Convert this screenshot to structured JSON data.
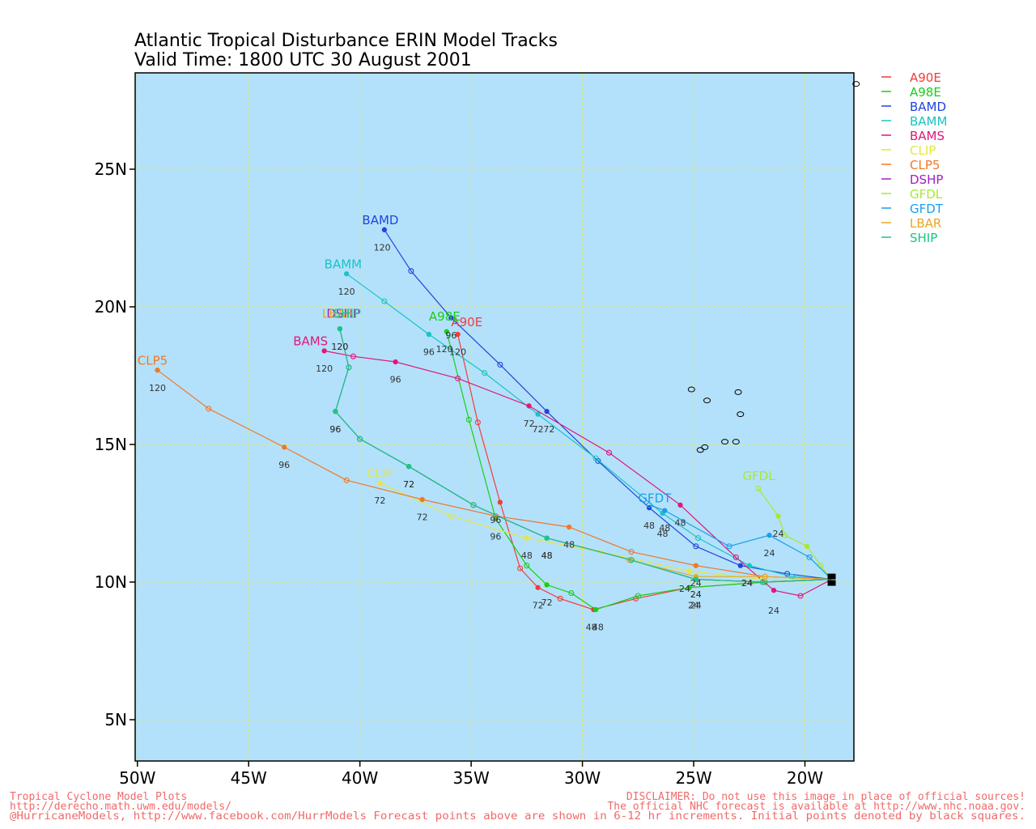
{
  "title": {
    "line1": "Atlantic Tropical Disturbance ERIN Model Tracks",
    "line2": "Valid Time: 1800 UTC 30 August 2001"
  },
  "colors": {
    "ocean": "#b3e1fb",
    "grid": "#e8e85a",
    "land": "#000000"
  },
  "axes": {
    "lon_ticks": [
      {
        "lon": -50,
        "label": "50W"
      },
      {
        "lon": -45,
        "label": "45W"
      },
      {
        "lon": -40,
        "label": "40W"
      },
      {
        "lon": -35,
        "label": "35W"
      },
      {
        "lon": -30,
        "label": "30W"
      },
      {
        "lon": -25,
        "label": "25W"
      },
      {
        "lon": -20,
        "label": "20W"
      }
    ],
    "lat_ticks": [
      {
        "lat": 5,
        "label": "5N"
      },
      {
        "lat": 10,
        "label": "10N"
      },
      {
        "lat": 15,
        "label": "15N"
      },
      {
        "lat": 20,
        "label": "20N"
      },
      {
        "lat": 25,
        "label": "25N"
      }
    ]
  },
  "origin": {
    "lon": -18.8,
    "lat": 10.1
  },
  "models": [
    {
      "name": "A90E",
      "color": "#f03c3c",
      "label_at": {
        "lon": -35.9,
        "lat": 19.3
      },
      "points": [
        [
          -18.8,
          10.1
        ],
        [
          -21.8,
          10.0
        ],
        [
          -25.2,
          9.8
        ],
        [
          -27.6,
          9.4
        ],
        [
          -29.5,
          9.0
        ],
        [
          -31.0,
          9.4
        ],
        [
          -32.0,
          9.8
        ],
        [
          -32.8,
          10.5
        ],
        [
          -33.7,
          12.9
        ],
        [
          -34.7,
          15.8
        ],
        [
          -35.6,
          19.0
        ]
      ],
      "hours": [
        {
          "lon": -25.0,
          "lat": 9.4,
          "t": "24"
        },
        {
          "lon": -29.6,
          "lat": 8.6,
          "t": "48"
        },
        {
          "lon": -32.0,
          "lat": 9.4,
          "t": "72"
        },
        {
          "lon": -33.9,
          "lat": 12.5,
          "t": "96"
        },
        {
          "lon": -35.6,
          "lat": 18.6,
          "t": "120"
        }
      ]
    },
    {
      "name": "A98E",
      "color": "#16d016",
      "label_at": {
        "lon": -36.9,
        "lat": 19.5
      },
      "points": [
        [
          -18.8,
          10.1
        ],
        [
          -21.8,
          10.0
        ],
        [
          -25.2,
          9.8
        ],
        [
          -27.5,
          9.5
        ],
        [
          -29.4,
          9.0
        ],
        [
          -30.5,
          9.6
        ],
        [
          -31.6,
          9.9
        ],
        [
          -32.5,
          10.6
        ],
        [
          -33.9,
          12.3
        ],
        [
          -35.1,
          15.9
        ],
        [
          -36.1,
          19.1
        ]
      ],
      "hours": [
        {
          "lon": -24.9,
          "lat": 9.4,
          "t": "24"
        },
        {
          "lon": -29.3,
          "lat": 8.6,
          "t": "48"
        },
        {
          "lon": -31.6,
          "lat": 9.5,
          "t": "72"
        },
        {
          "lon": -33.9,
          "lat": 11.9,
          "t": "96"
        },
        {
          "lon": -36.2,
          "lat": 18.7,
          "t": "120"
        }
      ]
    },
    {
      "name": "BAMD",
      "color": "#2244e0",
      "label_at": {
        "lon": -39.9,
        "lat": 23.0
      },
      "points": [
        [
          -18.8,
          10.1
        ],
        [
          -20.8,
          10.3
        ],
        [
          -22.9,
          10.6
        ],
        [
          -24.9,
          11.3
        ],
        [
          -27.0,
          12.7
        ],
        [
          -29.3,
          14.4
        ],
        [
          -31.6,
          16.2
        ],
        [
          -33.7,
          17.9
        ],
        [
          -35.9,
          19.6
        ],
        [
          -37.7,
          21.3
        ],
        [
          -38.9,
          22.8
        ]
      ],
      "hours": [
        {
          "lon": -22.6,
          "lat": 10.2,
          "t": "24"
        },
        {
          "lon": -27.0,
          "lat": 12.3,
          "t": "48"
        },
        {
          "lon": -31.5,
          "lat": 15.8,
          "t": "72"
        },
        {
          "lon": -35.9,
          "lat": 19.2,
          "t": "96"
        },
        {
          "lon": -39.0,
          "lat": 22.4,
          "t": "120"
        }
      ]
    },
    {
      "name": "BAMM",
      "color": "#18c4c4",
      "label_at": {
        "lon": -41.6,
        "lat": 21.4
      },
      "points": [
        [
          -18.8,
          10.1
        ],
        [
          -20.6,
          10.2
        ],
        [
          -22.5,
          10.6
        ],
        [
          -24.8,
          11.6
        ],
        [
          -26.4,
          12.5
        ],
        [
          -29.4,
          14.5
        ],
        [
          -32.0,
          16.1
        ],
        [
          -34.4,
          17.6
        ],
        [
          -36.9,
          19.0
        ],
        [
          -38.9,
          20.2
        ],
        [
          -40.6,
          21.2
        ]
      ],
      "hours": [
        {
          "lon": -22.6,
          "lat": 10.2,
          "t": "24"
        },
        {
          "lon": -26.4,
          "lat": 12.0,
          "t": "48"
        },
        {
          "lon": -32.0,
          "lat": 15.8,
          "t": "72"
        },
        {
          "lon": -36.9,
          "lat": 18.6,
          "t": "96"
        },
        {
          "lon": -40.6,
          "lat": 20.8,
          "t": "120"
        }
      ]
    },
    {
      "name": "BAMS",
      "color": "#e0187a",
      "label_at": {
        "lon": -43.0,
        "lat": 18.6
      },
      "points": [
        [
          -18.8,
          10.1
        ],
        [
          -20.2,
          9.5
        ],
        [
          -21.4,
          9.7
        ],
        [
          -23.1,
          10.9
        ],
        [
          -25.6,
          12.8
        ],
        [
          -28.8,
          14.7
        ],
        [
          -32.4,
          16.4
        ],
        [
          -35.6,
          17.4
        ],
        [
          -38.4,
          18.0
        ],
        [
          -40.3,
          18.2
        ],
        [
          -41.6,
          18.4
        ]
      ],
      "hours": [
        {
          "lon": -21.4,
          "lat": 9.2,
          "t": "24"
        },
        {
          "lon": -25.6,
          "lat": 12.4,
          "t": "48"
        },
        {
          "lon": -32.4,
          "lat": 16.0,
          "t": "72"
        },
        {
          "lon": -38.4,
          "lat": 17.6,
          "t": "96"
        },
        {
          "lon": -41.6,
          "lat": 18.0,
          "t": "120"
        }
      ]
    },
    {
      "name": "CLIP",
      "color": "#e6e640",
      "label_at": {
        "lon": -39.7,
        "lat": 13.8
      },
      "points": [
        [
          -18.8,
          10.1
        ],
        [
          -21.9,
          10.1
        ],
        [
          -25.2,
          10.4
        ],
        [
          -29.2,
          11.1
        ],
        [
          -32.5,
          11.6
        ],
        [
          -35.9,
          12.4
        ],
        [
          -39.1,
          13.6
        ]
      ],
      "hours": [
        {
          "lon": -25.4,
          "lat": 10.0,
          "t": "24"
        },
        {
          "lon": -32.5,
          "lat": 11.2,
          "t": "48"
        },
        {
          "lon": -39.1,
          "lat": 13.2,
          "t": "72"
        }
      ]
    },
    {
      "name": "CLP5",
      "color": "#f07828",
      "label_at": {
        "lon": -50.0,
        "lat": 17.9
      },
      "points": [
        [
          -18.8,
          10.1
        ],
        [
          -21.8,
          10.2
        ],
        [
          -24.9,
          10.6
        ],
        [
          -27.8,
          11.1
        ],
        [
          -30.6,
          12.0
        ],
        [
          -33.9,
          12.4
        ],
        [
          -37.2,
          13.0
        ],
        [
          -40.6,
          13.7
        ],
        [
          -43.4,
          14.9
        ],
        [
          -46.8,
          16.3
        ],
        [
          -49.1,
          17.7
        ]
      ],
      "hours": [
        {
          "lon": -24.9,
          "lat": 10.2,
          "t": "24"
        },
        {
          "lon": -30.6,
          "lat": 11.6,
          "t": "48"
        },
        {
          "lon": -37.2,
          "lat": 12.6,
          "t": "72"
        },
        {
          "lon": -43.4,
          "lat": 14.5,
          "t": "96"
        },
        {
          "lon": -49.1,
          "lat": 17.3,
          "t": "120"
        }
      ]
    },
    {
      "name": "DSHP",
      "color": "#a020c0",
      "label_at": {
        "lon": -41.5,
        "lat": 19.6
      },
      "points": [
        [
          -18.8,
          10.1
        ],
        [
          -21.9,
          10.0
        ],
        [
          -24.9,
          10.1
        ],
        [
          -27.8,
          10.8
        ],
        [
          -31.6,
          11.6
        ],
        [
          -34.9,
          12.8
        ],
        [
          -37.8,
          14.2
        ],
        [
          -40.0,
          15.2
        ],
        [
          -41.1,
          16.2
        ],
        [
          -40.5,
          17.8
        ],
        [
          -40.9,
          19.2
        ]
      ],
      "hours": [
        {
          "lon": -24.9,
          "lat": 9.8,
          "t": "24"
        },
        {
          "lon": -31.6,
          "lat": 11.2,
          "t": "48"
        },
        {
          "lon": -37.8,
          "lat": 13.8,
          "t": "72"
        },
        {
          "lon": -41.1,
          "lat": 15.8,
          "t": "96"
        },
        {
          "lon": -40.9,
          "lat": 18.8,
          "t": "120"
        }
      ]
    },
    {
      "name": "GFDL",
      "color": "#a8e830",
      "label_at": {
        "lon": -22.8,
        "lat": 13.7
      },
      "points": [
        [
          -18.8,
          10.1
        ],
        [
          -19.3,
          10.6
        ],
        [
          -19.9,
          11.3
        ],
        [
          -20.9,
          11.7
        ],
        [
          -21.2,
          12.4
        ],
        [
          -22.1,
          13.4
        ]
      ],
      "hours": [
        {
          "lon": -21.2,
          "lat": 12.0,
          "t": "24"
        }
      ]
    },
    {
      "name": "GFDT",
      "color": "#18a0e8",
      "label_at": {
        "lon": -27.5,
        "lat": 12.9
      },
      "points": [
        [
          -18.8,
          10.1
        ],
        [
          -19.8,
          10.9
        ],
        [
          -21.6,
          11.7
        ],
        [
          -23.4,
          11.3
        ],
        [
          -26.3,
          12.6
        ],
        [
          -27.0,
          12.8
        ]
      ],
      "hours": [
        {
          "lon": -21.6,
          "lat": 11.3,
          "t": "24"
        },
        {
          "lon": -26.3,
          "lat": 12.2,
          "t": "48"
        }
      ]
    },
    {
      "name": "LBAR",
      "color": "#e8a820",
      "label_at": {
        "lon": -41.7,
        "lat": 19.6
      },
      "points": [
        [
          -18.8,
          10.1
        ],
        [
          -21.8,
          10.2
        ],
        [
          -24.9,
          10.2
        ],
        [
          -27.9,
          10.8
        ]
      ],
      "hours": []
    },
    {
      "name": "SHIP",
      "color": "#18c880",
      "label_at": {
        "lon": -41.2,
        "lat": 19.6
      },
      "points": [
        [
          -18.8,
          10.1
        ],
        [
          -21.9,
          10.0
        ],
        [
          -24.9,
          10.1
        ],
        [
          -27.8,
          10.8
        ],
        [
          -31.6,
          11.6
        ],
        [
          -34.9,
          12.8
        ],
        [
          -37.8,
          14.2
        ],
        [
          -40.0,
          15.2
        ],
        [
          -41.1,
          16.2
        ],
        [
          -40.5,
          17.8
        ],
        [
          -40.9,
          19.2
        ]
      ],
      "hours": [
        {
          "lon": -24.9,
          "lat": 9.8,
          "t": "24"
        },
        {
          "lon": -31.6,
          "lat": 11.2,
          "t": "48"
        },
        {
          "lon": -37.8,
          "lat": 13.8,
          "t": "72"
        },
        {
          "lon": -41.1,
          "lat": 15.8,
          "t": "96"
        },
        {
          "lon": -40.9,
          "lat": 18.8,
          "t": "120"
        }
      ]
    }
  ],
  "islands": [
    {
      "lon": -25.1,
      "lat": 17.0
    },
    {
      "lon": -24.4,
      "lat": 16.6
    },
    {
      "lon": -23.0,
      "lat": 16.9
    },
    {
      "lon": -22.9,
      "lat": 16.1
    },
    {
      "lon": -24.5,
      "lat": 14.9
    },
    {
      "lon": -23.6,
      "lat": 15.1
    },
    {
      "lon": -23.1,
      "lat": 15.1
    },
    {
      "lon": -24.7,
      "lat": 14.8
    },
    {
      "lon": -17.7,
      "lat": 28.1
    }
  ],
  "footer": {
    "left1": "Tropical Cyclone Model Plots",
    "left2": "http://derecho.math.uwm.edu/models/",
    "left3": "@HurricaneModels, http://www.facebook.com/HurrModels  Forecast points above are shown in 6-12 hr increments. Initial points denoted by black squares.",
    "right1": "DISCLAIMER: Do not use this image in place of official sources!",
    "right2": "The official NHC forecast is available at http://www.nhc.noaa.gov."
  }
}
